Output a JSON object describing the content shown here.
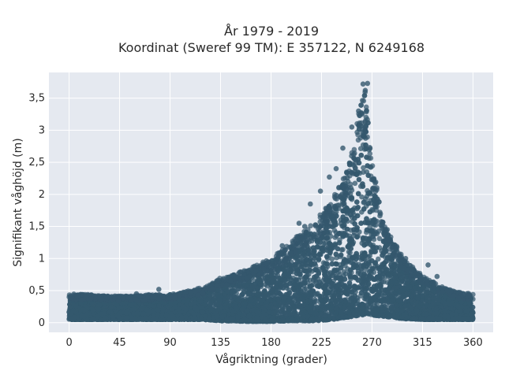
{
  "chart_data": {
    "type": "scatter",
    "title": "År 1979 - 2019",
    "subtitle": "Koordinat (Sweref 99 TM): E 357122, N 6249168",
    "xlabel": "Vågriktning (grader)",
    "ylabel": "Signifikant våghöjd (m)",
    "xlim": [
      -18,
      378
    ],
    "ylim": [
      -0.15,
      3.9
    ],
    "xticks": [
      0,
      45,
      90,
      135,
      180,
      225,
      270,
      315,
      360
    ],
    "xtick_labels": [
      "0",
      "45",
      "90",
      "135",
      "180",
      "225",
      "270",
      "315",
      "360"
    ],
    "yticks": [
      0,
      0.5,
      1,
      1.5,
      2,
      2.5,
      3,
      3.5
    ],
    "ytick_labels": [
      "0",
      "0,5",
      "1",
      "1,5",
      "2",
      "2,5",
      "3",
      "3,5"
    ],
    "grid": true,
    "marker_color": "#34586e",
    "background_color": "#e5e9f0",
    "envelope": {
      "x": [
        0,
        45,
        90,
        120,
        135,
        160,
        180,
        200,
        220,
        235,
        245,
        255,
        262,
        265,
        270,
        280,
        290,
        300,
        315,
        330,
        345,
        360
      ],
      "y_max": [
        0.45,
        0.42,
        0.45,
        0.55,
        0.7,
        0.85,
        1.0,
        1.3,
        1.6,
        1.95,
        2.3,
        2.9,
        3.72,
        3.6,
        2.5,
        1.65,
        1.25,
        0.95,
        0.75,
        0.58,
        0.48,
        0.45
      ],
      "y_min": [
        0.05,
        0.05,
        0.05,
        0.05,
        0.03,
        0.02,
        0.02,
        0.03,
        0.03,
        0.05,
        0.08,
        0.1,
        0.12,
        0.15,
        0.12,
        0.1,
        0.08,
        0.06,
        0.05,
        0.05,
        0.05,
        0.05
      ]
    },
    "notable_points": [
      {
        "x": 262,
        "y": 3.72
      },
      {
        "x": 266,
        "y": 3.73
      },
      {
        "x": 264,
        "y": 3.62
      },
      {
        "x": 258,
        "y": 3.3
      },
      {
        "x": 252,
        "y": 3.05
      },
      {
        "x": 244,
        "y": 2.72
      },
      {
        "x": 238,
        "y": 2.4
      },
      {
        "x": 232,
        "y": 2.27
      },
      {
        "x": 224,
        "y": 2.05
      },
      {
        "x": 215,
        "y": 1.85
      },
      {
        "x": 205,
        "y": 1.55
      },
      {
        "x": 210,
        "y": 1.5
      },
      {
        "x": 190,
        "y": 1.2
      },
      {
        "x": 80,
        "y": 0.52
      },
      {
        "x": 60,
        "y": 0.45
      },
      {
        "x": 328,
        "y": 0.72
      },
      {
        "x": 320,
        "y": 0.9
      },
      {
        "x": 300,
        "y": 1.0
      }
    ]
  }
}
